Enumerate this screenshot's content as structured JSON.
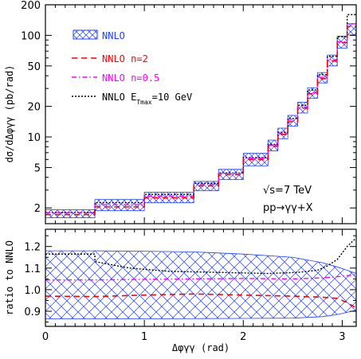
{
  "chart_data": [
    {
      "type": "line",
      "ylabel": "dσ/dΔφγγ (pb/rad)",
      "y_scale": "log",
      "ylim": [
        1.4,
        200
      ],
      "xlim": [
        0,
        3.14159
      ],
      "y_ticks": [
        "2",
        "5",
        "10",
        "20",
        "50",
        "100",
        "200"
      ],
      "y_tick_values": [
        2,
        5,
        10,
        20,
        50,
        100,
        200
      ],
      "bin_edges": [
        0,
        0.5,
        1.0,
        1.5,
        1.75,
        2.0,
        2.25,
        2.35,
        2.45,
        2.55,
        2.65,
        2.75,
        2.85,
        2.95,
        3.05,
        3.14159
      ],
      "series": [
        {
          "name": "NNLO",
          "band_low": [
            1.6,
            1.88,
            2.25,
            2.95,
            3.8,
            5.2,
            7.3,
            9.6,
            12.8,
            17.2,
            24.0,
            34.0,
            50.0,
            75.0,
            101.0
          ],
          "band_high": [
            1.92,
            2.42,
            2.85,
            3.65,
            4.8,
            6.9,
            9.3,
            12.2,
            16.3,
            22.0,
            30.5,
            43.0,
            64.0,
            98.0,
            130.0
          ]
        },
        {
          "name": "NNLO n=2",
          "values": [
            1.72,
            2.05,
            2.52,
            3.3,
            4.25,
            6.0,
            8.1,
            10.6,
            14.1,
            19.2,
            26.6,
            37.5,
            56.0,
            85.0,
            122.0
          ]
        },
        {
          "name": "NNLO n=0.5",
          "values": [
            1.8,
            2.15,
            2.62,
            3.42,
            4.4,
            6.2,
            8.3,
            10.9,
            14.6,
            19.8,
            27.4,
            38.8,
            57.5,
            86.5,
            130.0
          ]
        },
        {
          "name": "NNLO E_Tmax=10 GeV",
          "values": [
            1.8,
            2.25,
            2.72,
            3.5,
            4.42,
            6.25,
            8.45,
            11.1,
            15.2,
            20.5,
            29.0,
            41.0,
            62.0,
            97.0,
            160.0
          ]
        }
      ],
      "annotations": [
        "√s=7 TeV",
        "pp→γγ+X"
      ]
    },
    {
      "type": "line",
      "xlabel": "Δφγγ (rad)",
      "ylabel": "ratio to NNLO",
      "xlim": [
        0,
        3.14159
      ],
      "ylim": [
        0.83,
        1.28
      ],
      "x_ticks": [
        "0",
        "1",
        "2",
        "3"
      ],
      "x_tick_values": [
        0,
        1,
        2,
        3
      ],
      "y_ticks": [
        "0.9",
        "1.0",
        "1.1",
        "1.2"
      ],
      "y_tick_values": [
        0.9,
        1.0,
        1.1,
        1.2
      ],
      "series": [
        {
          "name": "NNLO",
          "x": [
            0,
            0.5,
            1.0,
            1.5,
            2.0,
            2.5,
            2.8,
            2.95,
            3.05,
            3.14159
          ],
          "band_low": [
            0.865,
            0.865,
            0.865,
            0.866,
            0.867,
            0.868,
            0.875,
            0.885,
            0.895,
            0.905
          ],
          "band_high": [
            1.18,
            1.18,
            1.178,
            1.175,
            1.165,
            1.15,
            1.125,
            1.105,
            1.09,
            1.075
          ]
        },
        {
          "name": "NNLO n=2",
          "x": [
            0,
            0.5,
            1.0,
            1.5,
            2.0,
            2.5,
            2.8,
            2.95,
            3.05,
            3.14159
          ],
          "values": [
            0.97,
            0.968,
            0.975,
            0.98,
            0.975,
            0.97,
            0.965,
            0.96,
            0.94,
            0.915
          ]
        },
        {
          "name": "NNLO n=0.5",
          "x": [
            0,
            0.5,
            1.0,
            1.5,
            2.0,
            2.5,
            2.8,
            2.95,
            3.05,
            3.14159
          ],
          "values": [
            1.045,
            1.045,
            1.048,
            1.05,
            1.052,
            1.05,
            1.055,
            1.06,
            1.065,
            1.07
          ]
        },
        {
          "name": "NNLO E_Tmax=10 GeV",
          "x": [
            0,
            0.25,
            0.5,
            0.5,
            0.85,
            1.25,
            1.75,
            2.25,
            2.55,
            2.75,
            2.85,
            2.95,
            3.05,
            3.14159
          ],
          "values": [
            1.165,
            1.165,
            1.165,
            1.13,
            1.1,
            1.085,
            1.08,
            1.075,
            1.08,
            1.09,
            1.11,
            1.14,
            1.2,
            1.24
          ]
        }
      ]
    }
  ],
  "legend": [
    {
      "label": "NNLO",
      "color": "#1f3fff",
      "style": "band"
    },
    {
      "label": "NNLO n=2",
      "color": "#ff0000",
      "style": "dashed"
    },
    {
      "label": "NNLO n=0.5",
      "color": "#ff00ff",
      "style": "dashdot"
    },
    {
      "label": "NNLO E",
      "sub": "Tmax",
      "suffix": "=10 GeV",
      "color": "#000000",
      "style": "dotted"
    }
  ],
  "colors": {
    "nnlo": "#1f3fff",
    "n2": "#ff0000",
    "n05": "#ff00ff",
    "etmax": "#000000"
  }
}
